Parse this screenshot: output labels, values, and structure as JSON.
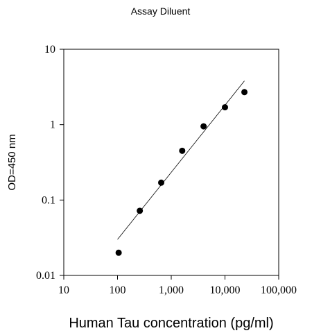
{
  "chart_data": {
    "type": "scatter",
    "title": "Assay Diluent",
    "xlabel": "Human Tau concentration (pg/ml)",
    "ylabel": "OD=450 nm",
    "x_scale": "log",
    "y_scale": "log",
    "xlim": [
      10,
      100000
    ],
    "ylim": [
      0.01,
      10
    ],
    "x_ticks": [
      10,
      100,
      1000,
      10000,
      100000
    ],
    "x_tick_labels": [
      "10",
      "100",
      "1,000",
      "10,000",
      "100,000"
    ],
    "y_ticks": [
      0.01,
      0.1,
      1,
      10
    ],
    "y_tick_labels": [
      "0.01",
      "0.1",
      "1",
      "10"
    ],
    "grid": false,
    "legend": "none",
    "marker_color": "#000000",
    "series": [
      {
        "x": [
          105,
          260,
          650,
          1600,
          4000,
          10000,
          23000
        ],
        "y": [
          0.02,
          0.072,
          0.17,
          0.45,
          0.95,
          1.7,
          2.7
        ]
      }
    ],
    "fit_line": {
      "x": [
        100,
        23000
      ],
      "y": [
        0.03,
        3.8
      ]
    }
  }
}
